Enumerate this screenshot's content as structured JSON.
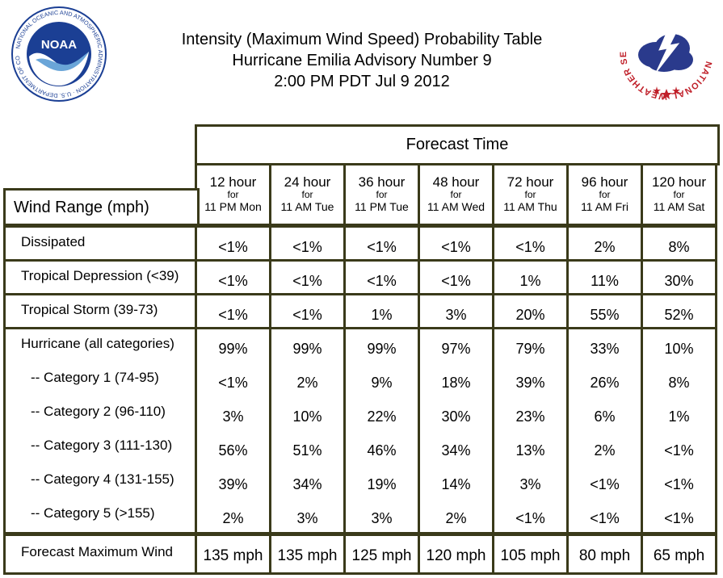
{
  "header": {
    "title_lines": [
      "Intensity (Maximum Wind Speed) Probability Table",
      "Hurricane Emilia Advisory Number 9",
      "2:00 PM PDT Jul 9 2012"
    ],
    "noaa_logo_text": "NOAA",
    "noaa_ring_text": "NATIONAL OCEANIC AND ATMOSPHERIC ADMINISTRATION · U.S. DEPARTMENT OF COMMERCE",
    "nws_ring_text": "NATIONAL WEATHER SERVICE"
  },
  "table": {
    "forecast_time_label": "Forecast Time",
    "row_header_label": "Wind Range (mph)",
    "columns": [
      {
        "hours": "12 hour",
        "for": "for",
        "when": "11 PM Mon"
      },
      {
        "hours": "24 hour",
        "for": "for",
        "when": "11 AM Tue"
      },
      {
        "hours": "36 hour",
        "for": "for",
        "when": "11 PM Tue"
      },
      {
        "hours": "48 hour",
        "for": "for",
        "when": "11 AM Wed"
      },
      {
        "hours": "72 hour",
        "for": "for",
        "when": "11 AM Thu"
      },
      {
        "hours": "96 hour",
        "for": "for",
        "when": "11 AM Fri"
      },
      {
        "hours": "120 hour",
        "for": "for",
        "when": "11 AM Sat"
      }
    ],
    "rows": [
      {
        "label": "Dissipated",
        "values": [
          "<1%",
          "<1%",
          "<1%",
          "<1%",
          "<1%",
          "2%",
          "8%"
        ]
      },
      {
        "label": "Tropical Depression (<39)",
        "values": [
          "<1%",
          "<1%",
          "<1%",
          "<1%",
          "1%",
          "11%",
          "30%"
        ]
      },
      {
        "label": "Tropical Storm (39-73)",
        "values": [
          "<1%",
          "<1%",
          "1%",
          "3%",
          "20%",
          "55%",
          "52%"
        ]
      },
      {
        "label": "Hurricane (all categories)",
        "values": [
          "99%",
          "99%",
          "99%",
          "97%",
          "79%",
          "33%",
          "10%"
        ]
      },
      {
        "label": "-- Category 1 (74-95)",
        "values": [
          "<1%",
          "2%",
          "9%",
          "18%",
          "39%",
          "26%",
          "8%"
        ]
      },
      {
        "label": "-- Category 2 (96-110)",
        "values": [
          "3%",
          "10%",
          "22%",
          "30%",
          "23%",
          "6%",
          "1%"
        ]
      },
      {
        "label": "-- Category 3 (111-130)",
        "values": [
          "56%",
          "51%",
          "46%",
          "34%",
          "13%",
          "2%",
          "<1%"
        ]
      },
      {
        "label": "-- Category 4 (131-155)",
        "values": [
          "39%",
          "34%",
          "19%",
          "14%",
          "3%",
          "<1%",
          "<1%"
        ]
      },
      {
        "label": "-- Category 5 (>155)",
        "values": [
          "2%",
          "3%",
          "3%",
          "2%",
          "<1%",
          "<1%",
          "<1%"
        ]
      }
    ],
    "max_wind": {
      "label": "Forecast Maximum Wind",
      "values": [
        "135 mph",
        "135 mph",
        "125 mph",
        "120 mph",
        "105 mph",
        "80 mph",
        "65 mph"
      ]
    }
  },
  "colors": {
    "border": "#3a3a1a",
    "noaa_blue": "#1b3f94",
    "nws_red": "#c0202a",
    "nws_blue": "#20307a"
  }
}
